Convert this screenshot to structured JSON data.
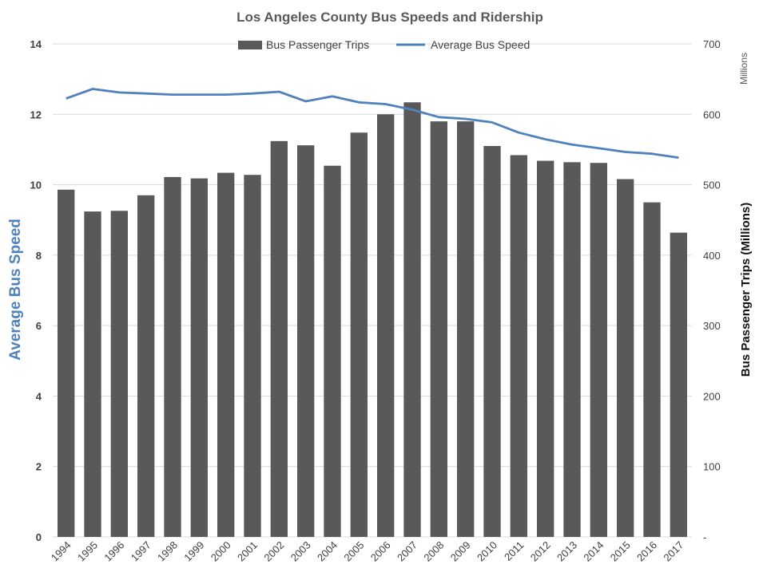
{
  "chart_data": {
    "type": "bar",
    "title": "Los Angeles County Bus Speeds and Ridership",
    "categories": [
      "1994",
      "1995",
      "1996",
      "1997",
      "1998",
      "1999",
      "2000",
      "2001",
      "2002",
      "2003",
      "2004",
      "2005",
      "2006",
      "2007",
      "2008",
      "2009",
      "2010",
      "2011",
      "2012",
      "2013",
      "2014",
      "2015",
      "2016",
      "2017"
    ],
    "series": [
      {
        "name": "Bus Passenger Trips",
        "type": "bar",
        "axis": "right",
        "color": "#595959",
        "values": [
          493,
          462,
          463,
          485,
          511,
          509,
          517,
          514,
          562,
          556,
          527,
          574,
          600,
          617,
          590,
          590,
          555,
          542,
          534,
          532,
          531,
          508,
          475,
          432
        ]
      },
      {
        "name": "Average Bus Speed",
        "type": "line",
        "axis": "left",
        "color": "#4f81bd",
        "values": [
          12.45,
          12.72,
          12.62,
          12.59,
          12.56,
          12.56,
          12.56,
          12.59,
          12.64,
          12.37,
          12.51,
          12.34,
          12.29,
          12.13,
          11.92,
          11.87,
          11.77,
          11.48,
          11.29,
          11.14,
          11.04,
          10.93,
          10.88,
          10.77
        ]
      }
    ],
    "y_left": {
      "label": "Average Bus Speed",
      "range": [
        0,
        14
      ],
      "ticks": [
        "0",
        "2",
        "4",
        "6",
        "8",
        "10",
        "12",
        "14"
      ]
    },
    "y_right": {
      "label": "Bus Passenger Trips (Millions)",
      "units_label": "Millions",
      "range": [
        0,
        700
      ],
      "ticks": [
        "-",
        "100",
        "200",
        "300",
        "400",
        "500",
        "600",
        "700"
      ]
    },
    "grid": true,
    "legend_position": "top-center"
  }
}
